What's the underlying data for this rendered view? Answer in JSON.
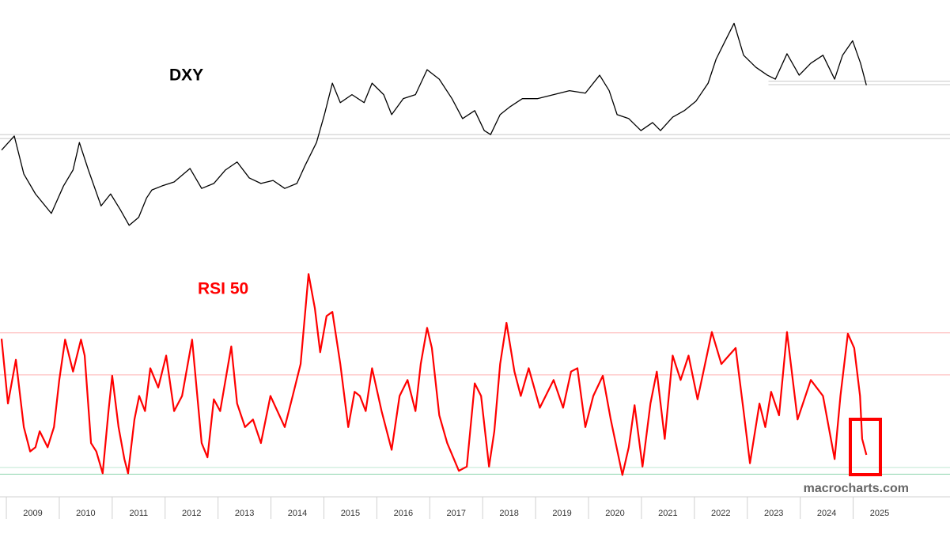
{
  "chart_data": [
    {
      "type": "line",
      "title": "DXY",
      "title_color": "#000000",
      "color": "#000000",
      "xlim": [
        2008.88,
        2026.83
      ],
      "ylim": [
        70.8,
        115.2
      ],
      "hlines": [
        {
          "value": 102.1,
          "color": "#c8c8c8",
          "from": 2023.4
        },
        {
          "value": 101.4,
          "color": "#c8c8c8",
          "from": 2023.4
        },
        {
          "value": 91.4,
          "color": "#c8c8c8"
        },
        {
          "value": 90.6,
          "color": "#c8c8c8"
        }
      ],
      "x": [
        2008.91,
        2009.15,
        2009.33,
        2009.55,
        2009.85,
        2010.08,
        2010.26,
        2010.38,
        2010.55,
        2010.79,
        2010.97,
        2011.15,
        2011.32,
        2011.5,
        2011.65,
        2011.75,
        2011.94,
        2012.17,
        2012.47,
        2012.69,
        2012.92,
        2013.14,
        2013.36,
        2013.59,
        2013.81,
        2014.04,
        2014.26,
        2014.49,
        2014.64,
        2014.86,
        2015.01,
        2015.16,
        2015.31,
        2015.53,
        2015.76,
        2015.91,
        2016.13,
        2016.28,
        2016.5,
        2016.73,
        2016.95,
        2017.18,
        2017.42,
        2017.62,
        2017.85,
        2018.03,
        2018.15,
        2018.33,
        2018.52,
        2018.75,
        2019.04,
        2019.34,
        2019.64,
        2019.94,
        2020.21,
        2020.39,
        2020.54,
        2020.76,
        2020.99,
        2021.21,
        2021.36,
        2021.59,
        2021.81,
        2022.03,
        2022.26,
        2022.41,
        2022.56,
        2022.75,
        2022.93,
        2023.16,
        2023.38,
        2023.53,
        2023.75,
        2023.98,
        2024.2,
        2024.43,
        2024.65,
        2024.8,
        2024.99,
        2025.14,
        2025.25
      ],
      "values": [
        88.3,
        91.1,
        83.5,
        79.5,
        75.6,
        81.1,
        84.3,
        89.8,
        84.3,
        77.1,
        79.5,
        76.4,
        73.2,
        74.8,
        78.7,
        80.3,
        81.1,
        81.9,
        84.6,
        80.6,
        81.6,
        84.3,
        85.9,
        82.7,
        81.6,
        82.2,
        80.6,
        81.6,
        85.1,
        89.8,
        95.4,
        101.7,
        97.8,
        99.4,
        97.8,
        101.7,
        99.4,
        95.4,
        98.6,
        99.4,
        104.4,
        102.5,
        98.6,
        94.6,
        96.2,
        92.2,
        91.4,
        95.4,
        97.0,
        98.6,
        98.6,
        99.4,
        100.2,
        99.7,
        103.3,
        100.2,
        95.4,
        94.6,
        92.2,
        93.8,
        92.2,
        94.9,
        96.2,
        98.1,
        101.7,
        106.5,
        109.7,
        113.7,
        107.3,
        104.9,
        103.3,
        102.5,
        107.6,
        103.3,
        105.7,
        107.3,
        102.5,
        107.3,
        110.2,
        105.7,
        101.3
      ]
    },
    {
      "type": "line",
      "title": "RSI 50",
      "title_color": "#ff0000",
      "color": "#ff0000",
      "xlim": [
        2008.88,
        2026.83
      ],
      "ylim": [
        42.2,
        67.6
      ],
      "xticks": [
        2009,
        2010,
        2011,
        2012,
        2013,
        2014,
        2015,
        2016,
        2017,
        2018,
        2019,
        2020,
        2021,
        2022,
        2023,
        2024,
        2025
      ],
      "hlines": [
        {
          "value": 60,
          "color": "#ffb0b0"
        },
        {
          "value": 55,
          "color": "#ffb0b0"
        },
        {
          "value": 44.0,
          "color": "#bfe8d2"
        },
        {
          "value": 43.2,
          "color": "#8fd4ae"
        }
      ],
      "x": [
        2008.91,
        2009.03,
        2009.18,
        2009.33,
        2009.45,
        2009.55,
        2009.63,
        2009.78,
        2009.9,
        2010.0,
        2010.11,
        2010.26,
        2010.41,
        2010.48,
        2010.6,
        2010.7,
        2010.82,
        2010.93,
        2011.0,
        2011.12,
        2011.23,
        2011.3,
        2011.42,
        2011.51,
        2011.62,
        2011.72,
        2011.87,
        2012.02,
        2012.17,
        2012.32,
        2012.51,
        2012.69,
        2012.8,
        2012.92,
        2013.04,
        2013.25,
        2013.36,
        2013.51,
        2013.66,
        2013.81,
        2013.99,
        2014.26,
        2014.41,
        2014.56,
        2014.71,
        2014.83,
        2014.93,
        2015.05,
        2015.16,
        2015.31,
        2015.46,
        2015.58,
        2015.68,
        2015.79,
        2015.91,
        2016.09,
        2016.28,
        2016.43,
        2016.58,
        2016.73,
        2016.83,
        2016.95,
        2017.04,
        2017.18,
        2017.33,
        2017.55,
        2017.7,
        2017.85,
        2017.97,
        2018.12,
        2018.22,
        2018.33,
        2018.45,
        2018.6,
        2018.72,
        2018.87,
        2019.08,
        2019.34,
        2019.52,
        2019.67,
        2019.79,
        2019.94,
        2020.09,
        2020.27,
        2020.42,
        2020.64,
        2020.76,
        2020.87,
        2021.02,
        2021.17,
        2021.29,
        2021.44,
        2021.59,
        2021.74,
        2021.89,
        2022.06,
        2022.33,
        2022.51,
        2022.78,
        2022.93,
        2023.05,
        2023.23,
        2023.34,
        2023.45,
        2023.6,
        2023.75,
        2023.95,
        2024.2,
        2024.43,
        2024.65,
        2024.76,
        2024.9,
        2025.02,
        2025.13,
        2025.17,
        2025.25
      ],
      "values": [
        59.3,
        51.6,
        56.8,
        48.8,
        45.9,
        46.4,
        48.3,
        46.4,
        48.8,
        54.4,
        59.2,
        55.4,
        59.2,
        57.3,
        46.9,
        45.9,
        43.3,
        50.7,
        54.9,
        48.8,
        45.0,
        43.3,
        49.7,
        52.5,
        50.7,
        55.8,
        53.5,
        57.3,
        50.7,
        52.5,
        59.2,
        46.9,
        45.2,
        52.1,
        50.7,
        58.4,
        51.6,
        48.8,
        49.7,
        46.9,
        52.5,
        48.8,
        52.5,
        56.3,
        67.0,
        62.9,
        57.7,
        62.0,
        62.5,
        56.3,
        48.8,
        53.0,
        52.5,
        50.7,
        55.8,
        50.7,
        46.1,
        52.5,
        54.4,
        50.7,
        56.3,
        60.6,
        58.2,
        50.2,
        46.9,
        43.6,
        44.1,
        54.0,
        52.5,
        44.1,
        48.3,
        56.3,
        61.2,
        55.4,
        52.5,
        55.8,
        51.1,
        54.4,
        51.1,
        55.4,
        55.8,
        48.8,
        52.5,
        54.9,
        49.7,
        43.1,
        46.4,
        51.4,
        44.1,
        51.6,
        55.4,
        47.4,
        57.3,
        54.4,
        57.3,
        52.1,
        60.1,
        56.3,
        58.2,
        50.7,
        44.5,
        51.6,
        48.8,
        53.0,
        50.2,
        60.1,
        49.7,
        54.4,
        52.5,
        45.0,
        52.5,
        59.9,
        58.2,
        52.5,
        47.4,
        45.5
      ]
    }
  ],
  "watermark": "macrocharts.com"
}
